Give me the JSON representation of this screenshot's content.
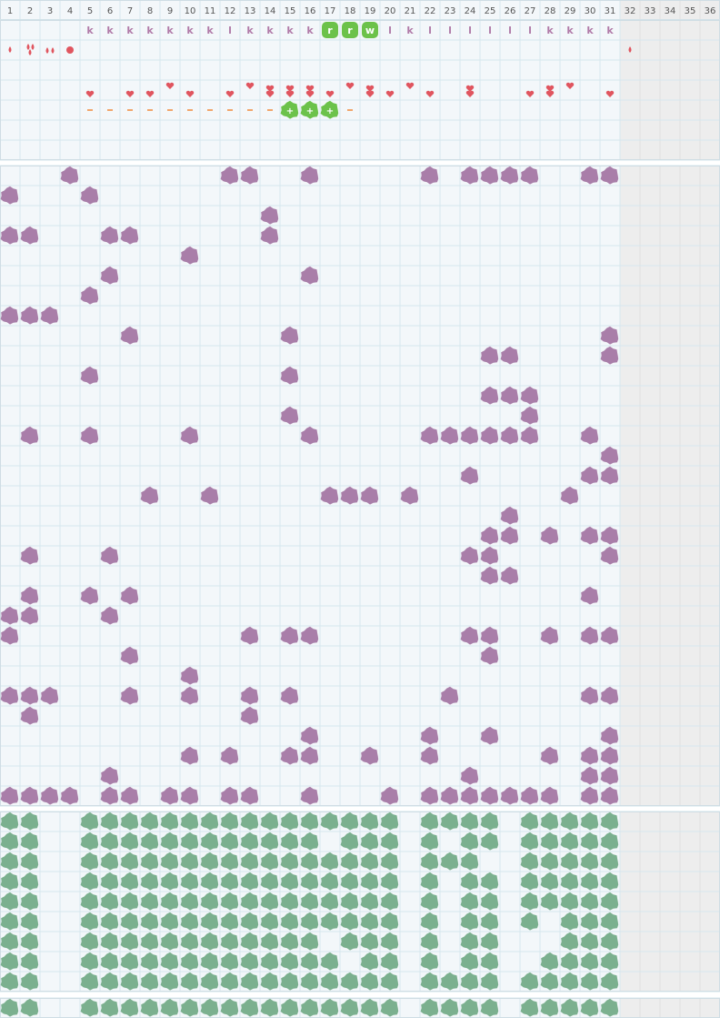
{
  "header": {
    "columns": [
      1,
      2,
      3,
      4,
      5,
      6,
      7,
      8,
      9,
      10,
      11,
      12,
      13,
      14,
      15,
      16,
      17,
      18,
      19,
      20,
      21,
      22,
      23,
      24,
      25,
      26,
      27,
      28,
      29,
      30,
      31,
      32,
      33,
      34,
      35,
      36
    ]
  },
  "tracker": {
    "letters": [
      null,
      null,
      null,
      null,
      "k",
      "k",
      "k",
      "k",
      "k",
      "k",
      "k",
      "l",
      "k",
      "k",
      "k",
      "k",
      "r",
      "r",
      "w",
      "l",
      "k",
      "l",
      "l",
      "l",
      "l",
      "l",
      "l",
      "k",
      "k",
      "k",
      "k"
    ],
    "plus": [
      "+",
      "+",
      "+"
    ]
  }
}
